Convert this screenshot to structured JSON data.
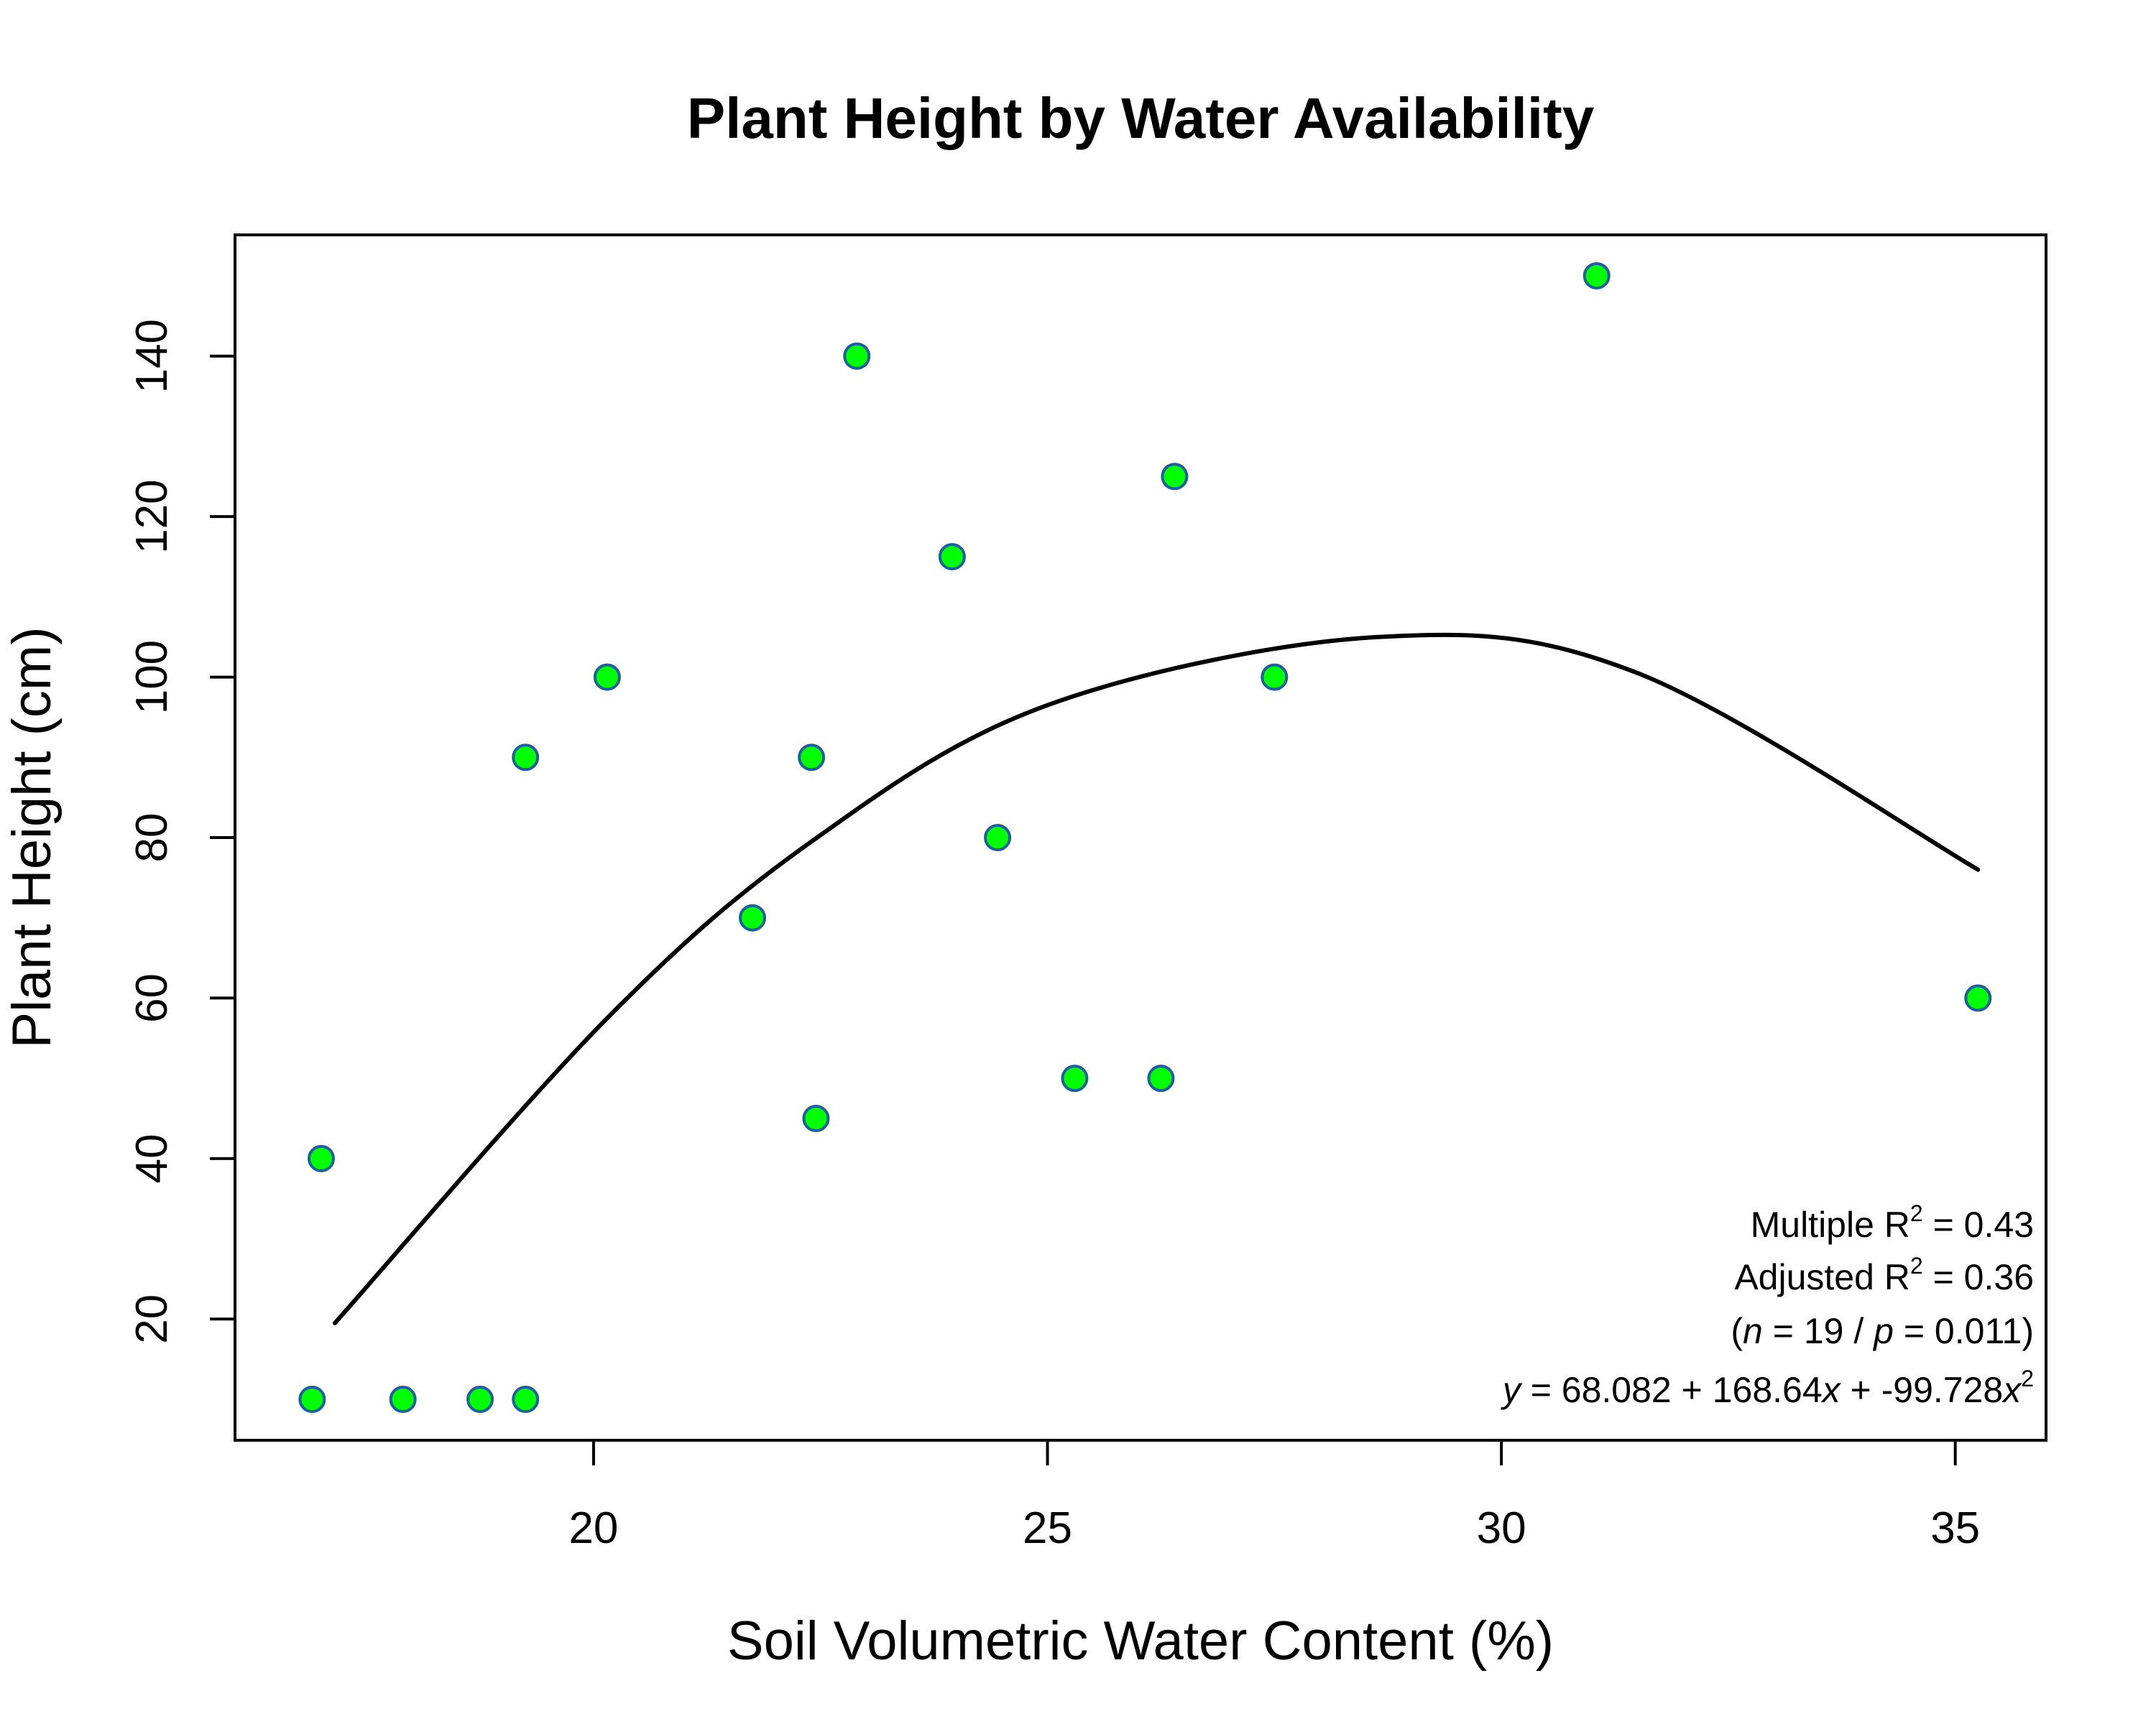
{
  "chart_data": {
    "type": "scatter",
    "title": "Plant Height by Water Availability",
    "xlabel": "Soil Volumetric Water Content (%)",
    "ylabel": "Plant Height (cm)",
    "xlim": [
      16.05,
      36.0
    ],
    "ylim": [
      4.9,
      155.1
    ],
    "x_ticks": [
      20,
      25,
      30,
      35
    ],
    "y_ticks": [
      20,
      40,
      60,
      80,
      100,
      120,
      140
    ],
    "grid": false,
    "points": [
      {
        "x": 16.9,
        "y": 10
      },
      {
        "x": 17.0,
        "y": 40
      },
      {
        "x": 17.9,
        "y": 10
      },
      {
        "x": 18.75,
        "y": 10
      },
      {
        "x": 19.25,
        "y": 10
      },
      {
        "x": 19.25,
        "y": 90
      },
      {
        "x": 20.15,
        "y": 100
      },
      {
        "x": 21.75,
        "y": 70
      },
      {
        "x": 22.4,
        "y": 90
      },
      {
        "x": 22.45,
        "y": 45
      },
      {
        "x": 22.9,
        "y": 140
      },
      {
        "x": 23.95,
        "y": 115
      },
      {
        "x": 24.45,
        "y": 80
      },
      {
        "x": 25.3,
        "y": 50
      },
      {
        "x": 26.25,
        "y": 50
      },
      {
        "x": 26.4,
        "y": 125
      },
      {
        "x": 27.5,
        "y": 100
      },
      {
        "x": 31.05,
        "y": 150
      },
      {
        "x": 35.25,
        "y": 60
      }
    ],
    "fit_curve": {
      "type": "quadratic",
      "x_range": [
        17.15,
        35.25
      ],
      "samples": [
        {
          "x": 17.15,
          "y": 19.5
        },
        {
          "x": 20.15,
          "y": 57.5
        },
        {
          "x": 22.4,
          "y": 79.5
        },
        {
          "x": 25.0,
          "y": 96.5
        },
        {
          "x": 28.65,
          "y": 105.0
        },
        {
          "x": 31.5,
          "y": 100.5
        },
        {
          "x": 35.25,
          "y": 76.0
        }
      ]
    },
    "point_fill": "#00ff00",
    "point_stroke": "#1f5fa0",
    "curve_color": "#000000",
    "annotations": {
      "r2_prefix": "Multiple R",
      "r2_sup": "2",
      "r2_suffix": " = 0.43",
      "adj_prefix": "Adjusted R",
      "adj_sup": "2",
      "adj_suffix": " = 0.36",
      "np_open": "(",
      "np_n": "n",
      "np_mid": " = 19 / ",
      "np_p": "p",
      "np_close": " = 0.011)",
      "eq_y": "y",
      "eq_part1": " = 68.082 + 168.64",
      "eq_x1": "x",
      "eq_part2": " + -99.728",
      "eq_x2": "x",
      "eq_sup": "2"
    }
  }
}
